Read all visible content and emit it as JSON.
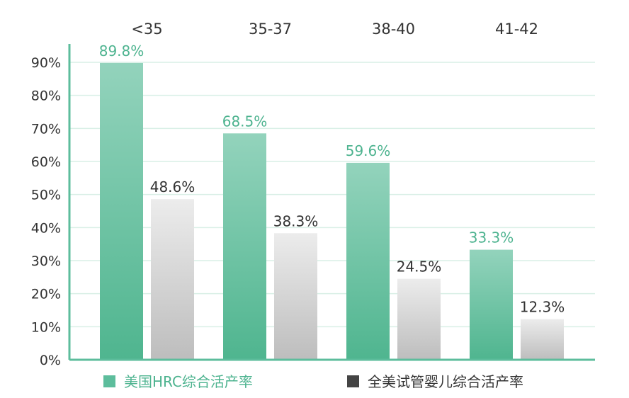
{
  "chart_data": {
    "type": "bar",
    "categories": [
      "<35",
      "35-37",
      "38-40",
      "41-42"
    ],
    "series": [
      {
        "name": "美国HRC综合活产率",
        "values": [
          89.8,
          68.5,
          59.6,
          33.3
        ],
        "color": "#5dbd9c"
      },
      {
        "name": "全美试管婴儿综合活产率",
        "values": [
          48.6,
          38.3,
          24.5,
          12.3
        ],
        "color": "#d0d0d0"
      }
    ],
    "value_labels": [
      [
        "89.8%",
        "68.5%",
        "59.6%",
        "33.3%"
      ],
      [
        "48.6%",
        "38.3%",
        "24.5%",
        "12.3%"
      ]
    ],
    "yticks": [
      "0%",
      "10%",
      "20%",
      "30%",
      "40%",
      "50%",
      "60%",
      "70%",
      "80%",
      "90%"
    ],
    "ylim": [
      0,
      90
    ],
    "grid": true,
    "legend_position": "bottom",
    "category_label_position": "top",
    "colors": {
      "hrc_bar": "#5dbd9c",
      "hrc_label": "#4db38f",
      "us_bar": "#d0d0d0",
      "us_label": "#333333",
      "axis": "#5dbd9c",
      "grid": "#d9efe6",
      "legend_us_marker": "#444444"
    }
  }
}
